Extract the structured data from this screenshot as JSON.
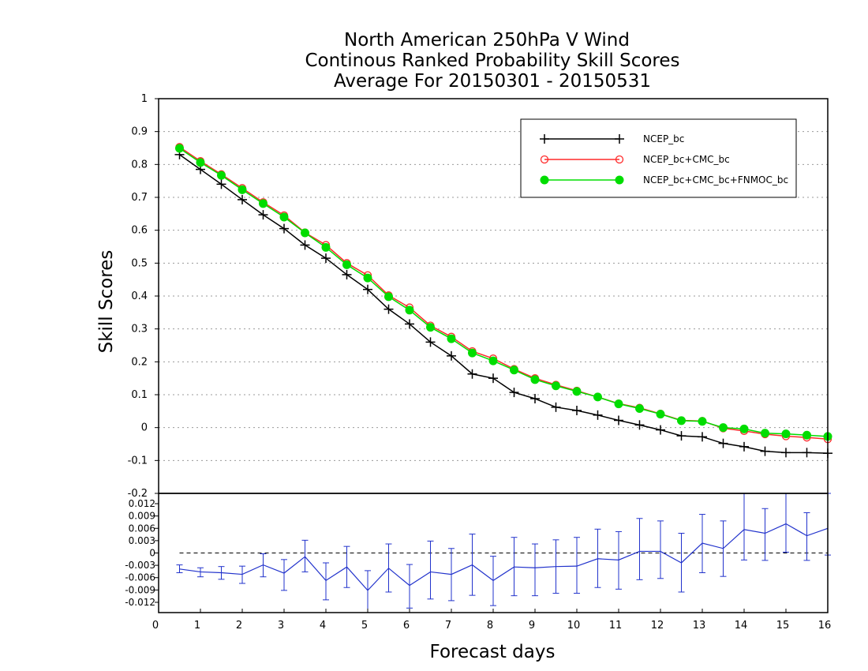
{
  "chart_data": [
    {
      "type": "line",
      "title": [
        "North American 250hPa V Wind",
        "Continous Ranked Probability Skill Scores",
        "Average For 20150301 - 20150531"
      ],
      "ylabel": "Skill Scores",
      "xlim": [
        0,
        16
      ],
      "ylim": [
        -0.2,
        1
      ],
      "yticks": [
        "-0.2",
        "-0.1",
        "0",
        "0.1",
        "0.2",
        "0.3",
        "0.4",
        "0.5",
        "0.6",
        "0.7",
        "0.8",
        "0.9",
        "1"
      ],
      "grid": true,
      "legend_position": "top-right",
      "x": [
        0.5,
        1,
        1.5,
        2,
        2.5,
        3,
        3.5,
        4,
        4.5,
        5,
        5.5,
        6,
        6.5,
        7,
        7.5,
        8,
        8.5,
        9,
        9.5,
        10,
        10.5,
        11,
        11.5,
        12,
        12.5,
        13,
        13.5,
        14,
        14.5,
        15,
        15.5,
        16
      ],
      "series": [
        {
          "name": "NCEP_bc",
          "color": "#000000",
          "marker": "plus",
          "values": [
            0.83,
            0.785,
            0.74,
            0.693,
            0.647,
            0.605,
            0.555,
            0.515,
            0.465,
            0.42,
            0.36,
            0.315,
            0.26,
            0.218,
            0.163,
            0.15,
            0.107,
            0.088,
            0.062,
            0.052,
            0.038,
            0.022,
            0.008,
            -0.007,
            -0.025,
            -0.028,
            -0.048,
            -0.058,
            -0.072,
            -0.076,
            -0.076,
            -0.078
          ]
        },
        {
          "name": "NCEP_bc+CMC_bc",
          "color": "#ff2a2a",
          "marker": "open-circle",
          "values": [
            0.853,
            0.81,
            0.77,
            0.728,
            0.685,
            0.645,
            0.593,
            0.555,
            0.5,
            0.463,
            0.402,
            0.365,
            0.31,
            0.276,
            0.232,
            0.21,
            0.178,
            0.15,
            0.13,
            0.112,
            0.093,
            0.073,
            0.06,
            0.042,
            0.022,
            0.02,
            -0.002,
            -0.01,
            -0.02,
            -0.026,
            -0.03,
            -0.035
          ]
        },
        {
          "name": "NCEP_bc+CMC_bc+FNMOC_bc",
          "color": "#00dd00",
          "marker": "filled-circle",
          "values": [
            0.849,
            0.806,
            0.767,
            0.723,
            0.681,
            0.64,
            0.592,
            0.548,
            0.495,
            0.455,
            0.398,
            0.357,
            0.305,
            0.27,
            0.227,
            0.203,
            0.175,
            0.146,
            0.127,
            0.11,
            0.093,
            0.072,
            0.058,
            0.041,
            0.021,
            0.019,
            0.0,
            -0.004,
            -0.017,
            -0.019,
            -0.023,
            -0.027
          ]
        }
      ]
    },
    {
      "type": "line",
      "xlabel": "Forecast days",
      "xlim": [
        0,
        16
      ],
      "xticks": [
        "0",
        "1",
        "2",
        "3",
        "4",
        "5",
        "6",
        "7",
        "8",
        "9",
        "10",
        "11",
        "12",
        "13",
        "14",
        "15",
        "16"
      ],
      "ylim": [
        -0.0145,
        0.0145
      ],
      "yticks": [
        "-0.012",
        "-0.009",
        "-0.006",
        "-0.003",
        "0",
        "0.003",
        "0.006",
        "0.009",
        "0.012"
      ],
      "x": [
        0.5,
        1,
        1.5,
        2,
        2.5,
        3,
        3.5,
        4,
        4.5,
        5,
        5.5,
        6,
        6.5,
        7,
        7.5,
        8,
        8.5,
        9,
        9.5,
        10,
        10.5,
        11,
        11.5,
        12,
        12.5,
        13,
        13.5,
        14,
        14.5,
        15,
        15.5,
        16
      ],
      "series": [
        {
          "color": "#2233cc",
          "values": [
            -0.0039,
            -0.0046,
            -0.0048,
            -0.0052,
            -0.0029,
            -0.0049,
            -0.0009,
            -0.0067,
            -0.0034,
            -0.0091,
            -0.0037,
            -0.0079,
            -0.0046,
            -0.0052,
            -0.0029,
            -0.0067,
            -0.0034,
            -0.0036,
            -0.0033,
            -0.0032,
            -0.0014,
            -0.0017,
            0.0004,
            0.0004,
            -0.0024,
            0.0024,
            0.0011,
            0.0057,
            0.0048,
            0.0071,
            0.0042,
            0.006
          ],
          "err_low": [
            -0.0048,
            -0.0058,
            -0.0064,
            -0.0074,
            -0.0058,
            -0.0091,
            -0.0046,
            -0.0114,
            -0.0084,
            -0.0145,
            -0.0095,
            -0.0134,
            -0.0112,
            -0.0116,
            -0.0103,
            -0.0128,
            -0.0104,
            -0.0104,
            -0.0098,
            -0.0098,
            -0.0084,
            -0.0088,
            -0.0065,
            -0.0062,
            -0.0095,
            -0.0048,
            -0.0057,
            -0.0017,
            -0.0018,
            0.0002,
            -0.0018,
            -0.0005
          ],
          "err_high": [
            -0.0029,
            -0.0036,
            -0.0033,
            -0.0032,
            -0.0002,
            -0.0016,
            0.0031,
            -0.0024,
            0.0016,
            -0.0043,
            0.0022,
            -0.0028,
            0.0029,
            0.0011,
            0.0046,
            -0.0008,
            0.0038,
            0.0022,
            0.0032,
            0.0038,
            0.0058,
            0.0052,
            0.0084,
            0.0078,
            0.0048,
            0.0094,
            0.0078,
            0.0145,
            0.0108,
            0.0145,
            0.0098,
            0.0145
          ]
        }
      ],
      "reference_line": 0
    }
  ]
}
